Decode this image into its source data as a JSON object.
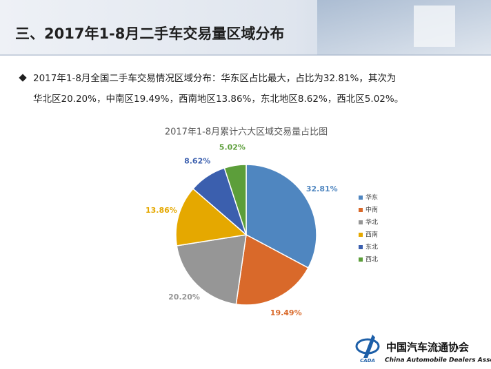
{
  "header": {
    "title": "三、2017年1-8月二手车交易量区域分布"
  },
  "bullet": {
    "line1": "2017年1-8月全国二手车交易情况区域分布：华东区占比最大，占比为32.81%，其次为",
    "line2": "华北区20.20%，中南区19.49%，西南地区13.86%，东北地区8.62%，西北区5.02%。"
  },
  "chart_data": {
    "type": "pie",
    "title": "2017年1-8月累计六大区域交易量占比图",
    "categories": [
      "华东",
      "中南",
      "华北",
      "西南",
      "东北",
      "西北"
    ],
    "values": [
      32.81,
      19.49,
      20.2,
      13.86,
      8.62,
      5.02
    ],
    "value_labels": [
      "32.81%",
      "19.49%",
      "20.20%",
      "13.86%",
      "8.62%",
      "5.02%"
    ],
    "colors": [
      "#4f86c0",
      "#d9692a",
      "#969696",
      "#e5a800",
      "#3b5fae",
      "#5c9e3a"
    ],
    "legend": "right"
  },
  "logo": {
    "name": "中国汽车流通协会",
    "english": "China Automobile Dealers Association",
    "abbr": "CADA"
  }
}
